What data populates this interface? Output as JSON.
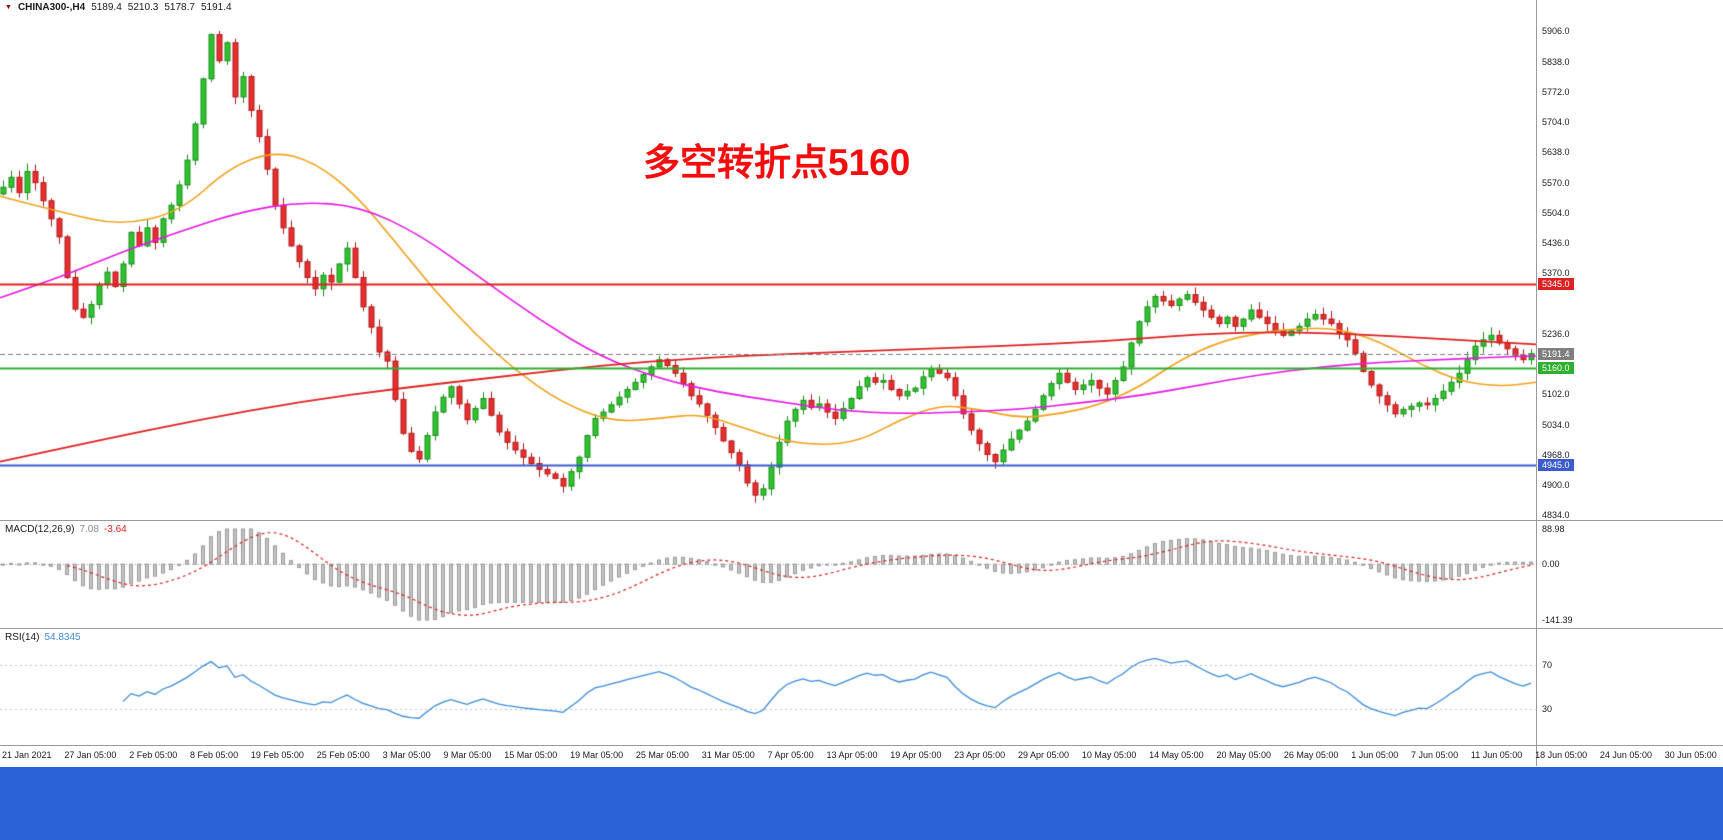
{
  "ui": {
    "header": {
      "symbol": "CHINA300-,H4",
      "open": "5189.4",
      "high": "5210.3",
      "low": "5178.7",
      "close": "5191.4"
    },
    "annotation": {
      "text": "多空转折点5160",
      "color": "#f30d0d"
    },
    "taskbar_color": "#2a62d8"
  },
  "chart_data": {
    "type": "candlestick",
    "title": "CHINA300-,H4",
    "timeframe": "H4",
    "up_color": "#2fc12f",
    "up_border": "#1d8f1d",
    "down_color": "#e43030",
    "down_border": "#b31b1b",
    "y_range": [
      4834.0,
      5906.0
    ],
    "y_ticks": [
      5906.0,
      5838.0,
      5772.0,
      5704.0,
      5638.0,
      5570.0,
      5504.0,
      5436.0,
      5370.0,
      5236.0,
      5102.0,
      5034.0,
      4968.0,
      4900.0,
      4834.0
    ],
    "first_open": 5545,
    "closes": [
      5560,
      5582,
      5548,
      5595,
      5570,
      5530,
      5490,
      5450,
      5360,
      5290,
      5272,
      5300,
      5345,
      5372,
      5340,
      5390,
      5460,
      5430,
      5470,
      5438,
      5490,
      5520,
      5565,
      5620,
      5700,
      5800,
      5898,
      5840,
      5880,
      5760,
      5805,
      5730,
      5672,
      5600,
      5520,
      5470,
      5430,
      5395,
      5360,
      5335,
      5365,
      5350,
      5390,
      5425,
      5360,
      5295,
      5250,
      5195,
      5175,
      5090,
      5015,
      4975,
      4958,
      5010,
      5062,
      5095,
      5118,
      5080,
      5045,
      5070,
      5092,
      5055,
      5018,
      4995,
      4978,
      4962,
      4948,
      4935,
      4925,
      4915,
      4898,
      4930,
      4962,
      5010,
      5048,
      5062,
      5078,
      5095,
      5112,
      5128,
      5145,
      5162,
      5178,
      5165,
      5148,
      5125,
      5098,
      5080,
      5055,
      5028,
      4998,
      4972,
      4945,
      4905,
      4878,
      4892,
      4940,
      4995,
      5042,
      5068,
      5088,
      5072,
      5080,
      5062,
      5048,
      5070,
      5092,
      5118,
      5138,
      5128,
      5132,
      5112,
      5098,
      5108,
      5115,
      5140,
      5158,
      5148,
      5138,
      5098,
      5058,
      5022,
      4992,
      4968,
      4952,
      4978,
      5002,
      5022,
      5042,
      5068,
      5098,
      5125,
      5148,
      5128,
      5112,
      5122,
      5132,
      5115,
      5102,
      5132,
      5162,
      5215,
      5262,
      5295,
      5318,
      5308,
      5298,
      5312,
      5322,
      5305,
      5288,
      5272,
      5258,
      5272,
      5252,
      5268,
      5288,
      5272,
      5258,
      5242,
      5232,
      5242,
      5252,
      5268,
      5278,
      5268,
      5258,
      5238,
      5222,
      5192,
      5152,
      5122,
      5098,
      5078,
      5058,
      5068,
      5075,
      5082,
      5078,
      5092,
      5108,
      5128,
      5148,
      5178,
      5208,
      5222,
      5232,
      5215,
      5202,
      5188,
      5178,
      5191.4
    ],
    "horizontal_lines": [
      {
        "price": 5345.0,
        "label": "5345.0",
        "color": "#dd2222",
        "width": 2,
        "style": "solid"
      },
      {
        "price": 5160.0,
        "label": "5160.0",
        "color": "#2fae2f",
        "width": 2,
        "style": "solid"
      },
      {
        "price": 4945.0,
        "label": "4945.0",
        "color": "#3b5bd0",
        "width": 2,
        "style": "solid"
      },
      {
        "price": 5191.4,
        "label": "5191.4",
        "color": "#7f7f7f",
        "width": 1,
        "style": "dash"
      }
    ],
    "moving_averages": [
      {
        "name": "ma-fast-orange",
        "color": "#f2a11c",
        "width": 1.6,
        "anchors": [
          [
            0,
            5540
          ],
          [
            60,
            5505
          ],
          [
            120,
            5475
          ],
          [
            180,
            5505
          ],
          [
            230,
            5605
          ],
          [
            275,
            5640
          ],
          [
            315,
            5615
          ],
          [
            355,
            5545
          ],
          [
            395,
            5440
          ],
          [
            435,
            5330
          ],
          [
            475,
            5235
          ],
          [
            515,
            5155
          ],
          [
            560,
            5085
          ],
          [
            610,
            5040
          ],
          [
            660,
            5048
          ],
          [
            700,
            5058
          ],
          [
            740,
            5030
          ],
          [
            780,
            5000
          ],
          [
            820,
            4988
          ],
          [
            860,
            4998
          ],
          [
            900,
            5045
          ],
          [
            940,
            5078
          ],
          [
            980,
            5068
          ],
          [
            1020,
            5048
          ],
          [
            1060,
            5058
          ],
          [
            1100,
            5078
          ],
          [
            1140,
            5118
          ],
          [
            1180,
            5178
          ],
          [
            1220,
            5218
          ],
          [
            1260,
            5238
          ],
          [
            1300,
            5248
          ],
          [
            1340,
            5246
          ],
          [
            1380,
            5218
          ],
          [
            1420,
            5168
          ],
          [
            1460,
            5130
          ],
          [
            1500,
            5118
          ],
          [
            1536,
            5128
          ]
        ]
      },
      {
        "name": "ma-mid-magenta",
        "color": "#e519e5",
        "width": 1.6,
        "anchors": [
          [
            0,
            5315
          ],
          [
            60,
            5360
          ],
          [
            120,
            5415
          ],
          [
            180,
            5462
          ],
          [
            240,
            5505
          ],
          [
            300,
            5528
          ],
          [
            360,
            5518
          ],
          [
            420,
            5455
          ],
          [
            480,
            5360
          ],
          [
            540,
            5265
          ],
          [
            600,
            5185
          ],
          [
            660,
            5135
          ],
          [
            720,
            5105
          ],
          [
            780,
            5085
          ],
          [
            840,
            5065
          ],
          [
            900,
            5058
          ],
          [
            960,
            5062
          ],
          [
            1020,
            5068
          ],
          [
            1080,
            5082
          ],
          [
            1140,
            5098
          ],
          [
            1200,
            5122
          ],
          [
            1260,
            5145
          ],
          [
            1320,
            5162
          ],
          [
            1380,
            5172
          ],
          [
            1440,
            5178
          ],
          [
            1500,
            5184
          ],
          [
            1536,
            5186
          ]
        ]
      },
      {
        "name": "ma-slow-red",
        "color": "#dd2222",
        "width": 1.8,
        "anchors": [
          [
            0,
            4952
          ],
          [
            100,
            5000
          ],
          [
            200,
            5045
          ],
          [
            300,
            5085
          ],
          [
            400,
            5115
          ],
          [
            500,
            5140
          ],
          [
            600,
            5165
          ],
          [
            700,
            5182
          ],
          [
            800,
            5192
          ],
          [
            900,
            5200
          ],
          [
            1000,
            5208
          ],
          [
            1100,
            5218
          ],
          [
            1200,
            5235
          ],
          [
            1280,
            5240
          ],
          [
            1360,
            5234
          ],
          [
            1440,
            5224
          ],
          [
            1536,
            5212
          ]
        ]
      }
    ],
    "macd": {
      "label": "MACD(12,26,9)",
      "value_main": "7.08",
      "value_signal": "-3.64",
      "params": [
        12,
        26,
        9
      ],
      "axis_labels": [
        {
          "text": "88.98",
          "value": 88.98
        },
        {
          "text": "0.00",
          "value": 0.0
        },
        {
          "text": "-141.39",
          "value": -141.39
        }
      ],
      "hist_color": "#c2c2c2",
      "hist_border": "#9d9d9d",
      "signal_color": "#dd2222"
    },
    "rsi": {
      "label": "RSI(14)",
      "value": "54.8345",
      "period": 14,
      "levels": [
        70,
        30
      ],
      "line_color": "#3c8dde",
      "level_color": "#c4c4c4"
    },
    "x_labels": [
      "21 Jan 2021",
      "27 Jan 05:00",
      "2 Feb 05:00",
      "8 Feb 05:00",
      "19 Feb 05:00",
      "25 Feb 05:00",
      "3 Mar 05:00",
      "9 Mar 05:00",
      "15 Mar 05:00",
      "19 Mar 05:00",
      "25 Mar 05:00",
      "31 Mar 05:00",
      "7 Apr 05:00",
      "13 Apr 05:00",
      "19 Apr 05:00",
      "23 Apr 05:00",
      "29 Apr 05:00",
      "10 May 05:00",
      "14 May 05:00",
      "20 May 05:00",
      "26 May 05:00",
      "1 Jun 05:00",
      "7 Jun 05:00",
      "11 Jun 05:00",
      "18 Jun 05:00",
      "24 Jun 05:00",
      "30 Jun 05:00"
    ]
  }
}
